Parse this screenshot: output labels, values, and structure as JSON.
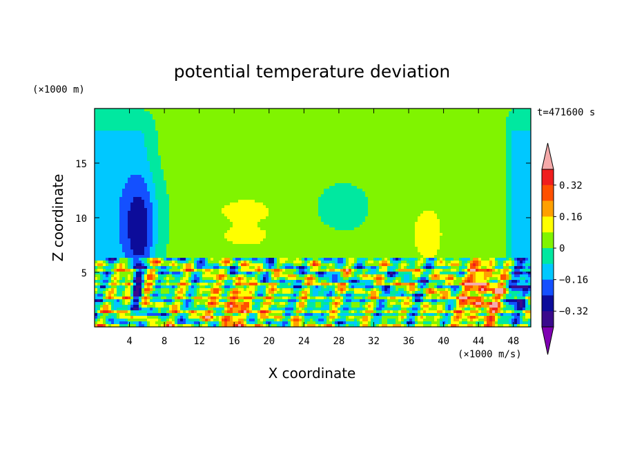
{
  "chart_data": {
    "type": "heatmap",
    "title": "potential temperature deviation",
    "xlabel": "X coordinate",
    "ylabel": "Z coordinate",
    "x_unit": "(×1000 m/s)",
    "y_unit": "(×1000 m)",
    "time_label": "t=471600 s",
    "xlim": [
      0,
      50
    ],
    "ylim": [
      0,
      20
    ],
    "x_ticks": [
      4,
      8,
      12,
      16,
      20,
      24,
      28,
      32,
      36,
      40,
      44,
      48
    ],
    "y_ticks": [
      5,
      10,
      15
    ],
    "colorbar": {
      "levels": [
        -0.4,
        -0.36,
        -0.32,
        -0.24,
        -0.16,
        -0.08,
        0,
        0.08,
        0.16,
        0.24,
        0.32,
        0.36,
        0.4
      ],
      "tick_labels": [
        "0.32",
        "0.16",
        "0",
        "−0.16",
        "−0.32"
      ],
      "colors": [
        "#7f00b2",
        "#3a0a8c",
        "#0c0c9a",
        "#1450ff",
        "#00c8ff",
        "#00e8a0",
        "#80f400",
        "#ffff00",
        "#ffa000",
        "#ff5000",
        "#f01e1e",
        "#f5aaaa"
      ]
    },
    "regions": {
      "upper_background": 0.02,
      "left_cold_column_outer": -0.1,
      "left_cold_column_core": -0.3,
      "left_cold_column_deep_core": -0.36,
      "warm_patch_x14_21": 0.12,
      "warm_patch_x36_40": 0.12,
      "lower_layer_range": [
        -0.36,
        0.4
      ],
      "warm_eddy_x41_48": 0.3
    }
  }
}
